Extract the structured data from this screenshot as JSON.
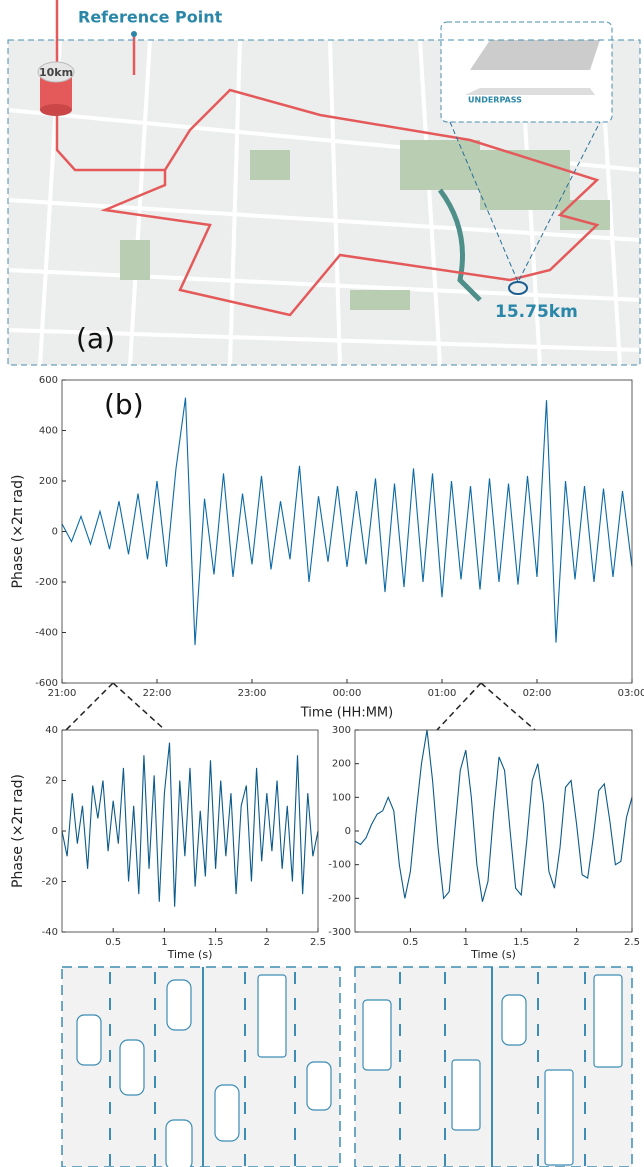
{
  "panel_a": {
    "reference_label": "Reference Point",
    "marker_start": "10km",
    "inset_label": "UNDERPASS",
    "marker_end": "15.75km",
    "panel_label": "(a)"
  },
  "chart_data": [
    {
      "type": "line",
      "annotation": "(b)",
      "xlabel": "Time (HH:MM)",
      "ylabel": "Phase (×2π rad)",
      "xlim": [
        0,
        6
      ],
      "xticks": [
        {
          "value": 0,
          "label": "21:00"
        },
        {
          "value": 1,
          "label": "22:00"
        },
        {
          "value": 2,
          "label": "23:00"
        },
        {
          "value": 3,
          "label": "00:00"
        },
        {
          "value": 4,
          "label": "01:00"
        },
        {
          "value": 5,
          "label": "02:00"
        },
        {
          "value": 6,
          "label": "03:00"
        }
      ],
      "ylim": [
        -600,
        600
      ],
      "yticks": [
        -600,
        -400,
        -200,
        0,
        200,
        400,
        600
      ],
      "x": [
        0,
        0.1,
        0.2,
        0.3,
        0.4,
        0.5,
        0.6,
        0.7,
        0.8,
        0.9,
        1,
        1.1,
        1.2,
        1.3,
        1.4,
        1.5,
        1.6,
        1.7,
        1.8,
        1.9,
        2,
        2.1,
        2.2,
        2.3,
        2.4,
        2.5,
        2.6,
        2.7,
        2.8,
        2.9,
        3,
        3.1,
        3.2,
        3.3,
        3.4,
        3.5,
        3.6,
        3.7,
        3.8,
        3.9,
        4,
        4.1,
        4.2,
        4.3,
        4.4,
        4.5,
        4.6,
        4.7,
        4.8,
        4.9,
        5,
        5.1,
        5.2,
        5.3,
        5.4,
        5.5,
        5.6,
        5.7,
        5.8,
        5.9,
        6
      ],
      "series": [
        {
          "color": "#0b6aa6",
          "values": [
            30,
            -40,
            60,
            -50,
            80,
            -70,
            120,
            -90,
            150,
            -110,
            200,
            -140,
            250,
            530,
            -450,
            130,
            -170,
            230,
            -180,
            150,
            -130,
            220,
            -150,
            120,
            -110,
            260,
            -200,
            140,
            -120,
            180,
            -140,
            160,
            -130,
            210,
            -240,
            190,
            -220,
            250,
            -200,
            230,
            -260,
            200,
            -190,
            180,
            -230,
            210,
            -200,
            190,
            -210,
            220,
            -180,
            520,
            -440,
            200,
            -190,
            180,
            -200,
            170,
            -180,
            160,
            -140
          ]
        }
      ]
    },
    {
      "type": "line",
      "xlabel": "Time (s)",
      "ylabel": "Phase (×2π rad)",
      "xlim": [
        0,
        2.5
      ],
      "xticks": [
        0.5,
        1,
        1.5,
        2,
        2.5
      ],
      "ylim": [
        -40,
        40
      ],
      "yticks": [
        -40,
        -20,
        0,
        20,
        40
      ],
      "x": [
        0,
        0.05,
        0.1,
        0.15,
        0.2,
        0.25,
        0.3,
        0.35,
        0.4,
        0.45,
        0.5,
        0.55,
        0.6,
        0.65,
        0.7,
        0.75,
        0.8,
        0.85,
        0.9,
        0.95,
        1,
        1.05,
        1.1,
        1.15,
        1.2,
        1.25,
        1.3,
        1.35,
        1.4,
        1.45,
        1.5,
        1.55,
        1.6,
        1.65,
        1.7,
        1.75,
        1.8,
        1.85,
        1.9,
        1.95,
        2,
        2.05,
        2.1,
        2.15,
        2.2,
        2.25,
        2.3,
        2.35,
        2.4,
        2.45,
        2.5
      ],
      "series": [
        {
          "color": "#0b5a8a",
          "values": [
            0,
            -10,
            15,
            -5,
            10,
            -15,
            18,
            5,
            20,
            -8,
            12,
            -5,
            25,
            -20,
            10,
            -25,
            30,
            -15,
            22,
            -28,
            15,
            35,
            -30,
            20,
            -10,
            25,
            -22,
            8,
            -18,
            28,
            -15,
            20,
            -10,
            15,
            -25,
            10,
            18,
            -20,
            25,
            -12,
            15,
            -8,
            20,
            -15,
            10,
            -20,
            30,
            -25,
            15,
            -10,
            0
          ]
        }
      ]
    },
    {
      "type": "line",
      "xlabel": "Time (s)",
      "xlim": [
        0,
        2.5
      ],
      "xticks": [
        0.5,
        1,
        1.5,
        2,
        2.5
      ],
      "ylim": [
        -300,
        300
      ],
      "yticks": [
        -300,
        -200,
        -100,
        0,
        100,
        200,
        300
      ],
      "x": [
        0,
        0.05,
        0.1,
        0.15,
        0.2,
        0.25,
        0.3,
        0.35,
        0.4,
        0.45,
        0.5,
        0.55,
        0.6,
        0.65,
        0.7,
        0.75,
        0.8,
        0.85,
        0.9,
        0.95,
        1,
        1.05,
        1.1,
        1.15,
        1.2,
        1.25,
        1.3,
        1.35,
        1.4,
        1.45,
        1.5,
        1.55,
        1.6,
        1.65,
        1.7,
        1.75,
        1.8,
        1.85,
        1.9,
        1.95,
        2,
        2.05,
        2.1,
        2.15,
        2.2,
        2.25,
        2.3,
        2.35,
        2.4,
        2.45,
        2.5
      ],
      "series": [
        {
          "color": "#0b5a8a",
          "values": [
            -30,
            -40,
            -20,
            20,
            50,
            60,
            100,
            60,
            -100,
            -200,
            -120,
            50,
            200,
            300,
            150,
            -50,
            -200,
            -180,
            0,
            180,
            240,
            100,
            -100,
            -210,
            -150,
            50,
            220,
            180,
            0,
            -170,
            -190,
            -30,
            150,
            200,
            80,
            -120,
            -170,
            -50,
            130,
            150,
            20,
            -130,
            -140,
            -20,
            120,
            140,
            30,
            -100,
            -90,
            40,
            100
          ]
        }
      ]
    }
  ]
}
